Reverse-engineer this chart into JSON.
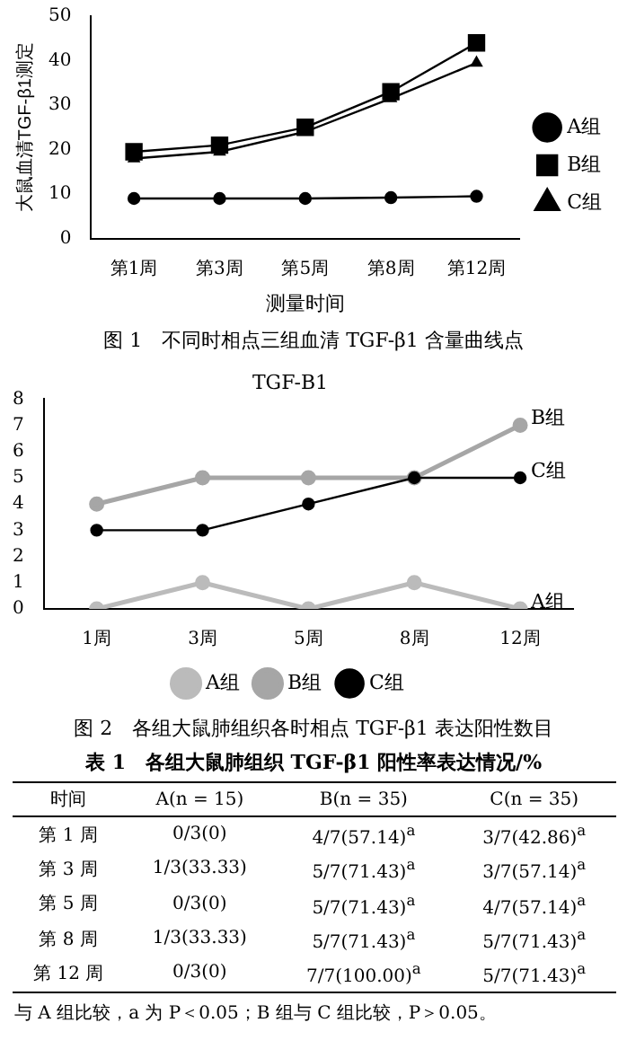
{
  "chart_data": [
    {
      "type": "line",
      "title": "图 1　不同时相点三组血清 TGF-β1 含量曲线点",
      "xlabel": "测量时间",
      "ylabel": "大鼠血清TGF-β1测定",
      "categories": [
        "第1周",
        "第3周",
        "第5周",
        "第8周",
        "第12周"
      ],
      "ylim": [
        0,
        50
      ],
      "yticks": [
        0,
        10,
        20,
        30,
        40,
        50
      ],
      "grid": false,
      "legend": "right",
      "line_style": "solid",
      "series": [
        {
          "name": "A组",
          "color": "#000000",
          "marker": "circle",
          "values": [
            9,
            9,
            9,
            9.2,
            9.5
          ]
        },
        {
          "name": "B组",
          "color": "#000000",
          "marker": "square",
          "values": [
            19.5,
            21,
            25,
            33,
            44
          ]
        },
        {
          "name": "C组",
          "color": "#000000",
          "marker": "triangle",
          "values": [
            18,
            19.5,
            24,
            31.5,
            39.5
          ]
        }
      ]
    },
    {
      "type": "line",
      "title": "TGF-B1",
      "categories": [
        "1周",
        "3周",
        "5周",
        "8周",
        "12周"
      ],
      "ylim": [
        0,
        8
      ],
      "yticks": [
        0,
        1,
        2,
        3,
        4,
        5,
        6,
        7,
        8
      ],
      "grid": false,
      "legend": "bottom",
      "marker": "circle",
      "line_style": "solid",
      "series": [
        {
          "name": "A组",
          "color": "#bbbbbb",
          "values": [
            0,
            1,
            0,
            1,
            0
          ]
        },
        {
          "name": "B组",
          "color": "#a6a6a6",
          "values": [
            4,
            5,
            5,
            5,
            7
          ]
        },
        {
          "name": "C组",
          "color": "#000000",
          "values": [
            3,
            3,
            4,
            5,
            5
          ]
        }
      ],
      "annotations": [
        {
          "text": "B组",
          "x": "12周",
          "y": 7
        },
        {
          "text": "C组",
          "x": "12周",
          "y": 5
        },
        {
          "text": "A组",
          "x": "12周",
          "y": 0
        },
        "图 2　各组大鼠肺组织各时相点 TGF-β1 表达阳性数目"
      ]
    },
    {
      "type": "other",
      "title": "表 1　各组大鼠肺组织 TGF-β1 阳性率表达情况/%",
      "ylabel": "时间",
      "categories": [
        "A(n = 15)",
        "B(n = 35)",
        "C(n = 35)"
      ],
      "y_categories": [
        "第 1 周",
        "第 3 周",
        "第 5 周",
        "第 8 周",
        "第 12 周"
      ],
      "cell_labels": [
        [
          "0/3(0)",
          "4/7(57.14)$^{a}$",
          "3/7(42.86)$^{a}$"
        ],
        [
          "1/3(33.33)",
          "5/7(71.43)$^{a}$",
          "3/7(57.14)$^{a}$"
        ],
        [
          "0/3(0)",
          "5/7(71.43)$^{a}$",
          "4/7(57.14)$^{a}$"
        ],
        [
          "1/3(33.33)",
          "5/7(71.43)$^{a}$",
          "5/7(71.43)$^{a}$"
        ],
        [
          "0/3(0)",
          "7/7(100.00)$^{a}$",
          "5/7(71.43)$^{a}$"
        ]
      ],
      "annotations": [
        "与 A 组比较，a 为 P＜0.05；B 组与 C 组比较，P＞0.05。"
      ]
    }
  ]
}
